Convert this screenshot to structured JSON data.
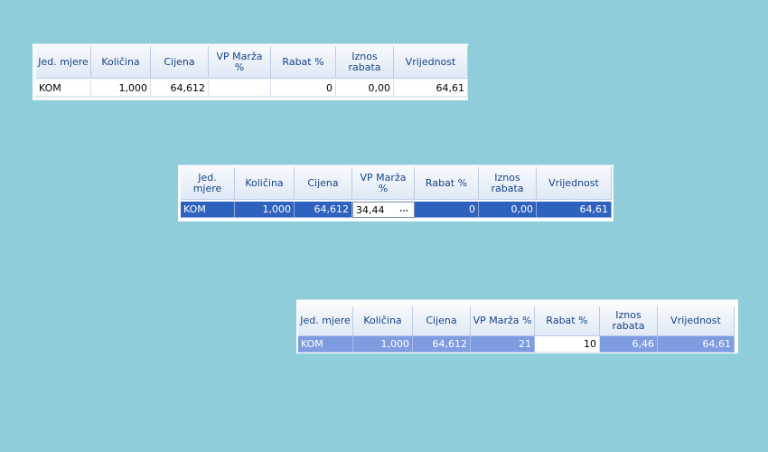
{
  "grids": [
    {
      "headers": [
        "Jed. mjere",
        "Količina",
        "Cijena",
        "VP Marža %",
        "Rabat %",
        "Iznos rabata",
        "Vrijednost"
      ],
      "row": [
        "KOM",
        "1,000",
        "64,612",
        null,
        "0",
        "0,00",
        "64,61"
      ]
    },
    {
      "headers": [
        "Jed. mjere",
        "Količina",
        "Cijena",
        "VP Marža %",
        "Rabat %",
        "Iznos rabata",
        "Vrijednost"
      ],
      "row": [
        "KOM",
        "1,000",
        "64,612",
        "34,44",
        "0",
        "0,00",
        "64,61"
      ]
    },
    {
      "headers": [
        "Jed. mjere",
        "Količina",
        "Cijena",
        "VP Marža %",
        "Rabat %",
        "Iznos rabata",
        "Vrijednost"
      ],
      "row": [
        "KOM",
        "1,000",
        "64,612",
        "21",
        "10",
        "6,46",
        "64,61"
      ]
    }
  ]
}
